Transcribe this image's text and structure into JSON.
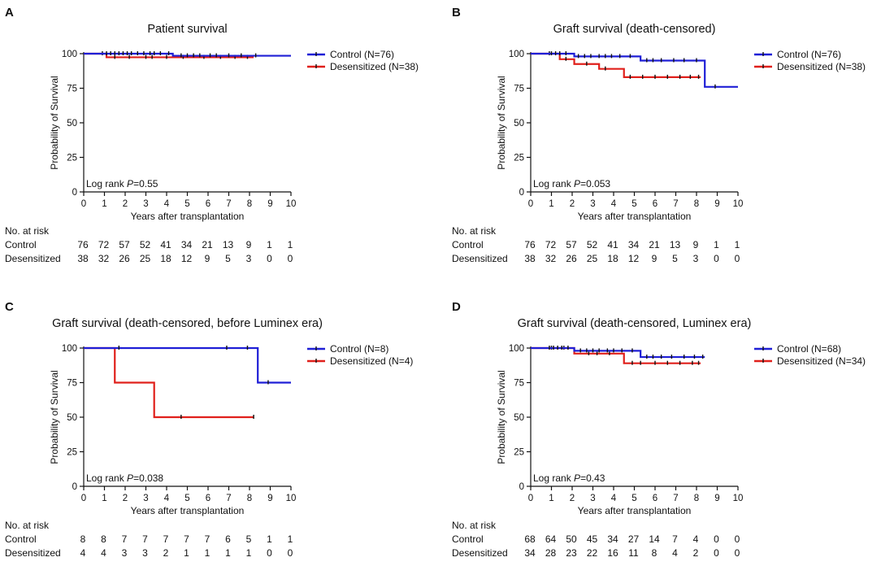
{
  "colors": {
    "control": "#1f1fd6",
    "desensitized": "#e0201b",
    "censor": "#111111"
  },
  "chart_data": [
    {
      "type": "line",
      "panel": "A",
      "title": "Patient survival",
      "xlabel": "Years after transplantation",
      "ylabel": "Probability of Survival",
      "xlim": [
        0,
        10
      ],
      "ylim": [
        0,
        100
      ],
      "xticks": [
        "0",
        "1",
        "2",
        "3",
        "4",
        "5",
        "6",
        "7",
        "8",
        "9",
        "10"
      ],
      "yticks": [
        "0",
        "25",
        "50",
        "75",
        "100"
      ],
      "logrank_prefix": "Log rank ",
      "logrank_p": "P",
      "logrank_value": "=0.55",
      "series": [
        {
          "name": "Control (N=76)",
          "key": "control",
          "steps": [
            [
              0,
              100
            ],
            [
              4.3,
              98.5
            ],
            [
              10,
              98.5
            ]
          ],
          "censors": [
            1.1,
            1.3,
            1.5,
            1.7,
            1.9,
            2.1,
            2.3,
            2.6,
            2.9,
            3.2,
            3.4,
            3.7,
            4.1,
            4.7,
            5.0,
            5.3,
            5.6,
            6.1,
            6.4,
            7.0,
            7.6,
            8.3
          ]
        },
        {
          "name": "Desensitized (N=38)",
          "key": "desensitized",
          "steps": [
            [
              0,
              100
            ],
            [
              1.1,
              97.4
            ],
            [
              8.2,
              97.4
            ]
          ],
          "censors": [
            0.9,
            1.5,
            2.2,
            3.0,
            3.3,
            4.0,
            4.8,
            5.8,
            6.6,
            7.3,
            7.9
          ]
        }
      ],
      "risk_header": "No. at risk",
      "risk_rows": [
        {
          "label": "Control",
          "values": [
            "76",
            "72",
            "57",
            "52",
            "41",
            "34",
            "21",
            "13",
            "9",
            "1",
            "1"
          ]
        },
        {
          "label": "Desensitized",
          "values": [
            "38",
            "32",
            "26",
            "25",
            "18",
            "12",
            "9",
            "5",
            "3",
            "0",
            "0"
          ]
        }
      ]
    },
    {
      "type": "line",
      "panel": "B",
      "title": "Graft survival (death-censored)",
      "xlabel": "Years after transplantation",
      "ylabel": "Probability of Survival",
      "xlim": [
        0,
        10
      ],
      "ylim": [
        0,
        100
      ],
      "xticks": [
        "0",
        "1",
        "2",
        "3",
        "4",
        "5",
        "6",
        "7",
        "8",
        "9",
        "10"
      ],
      "yticks": [
        "0",
        "25",
        "50",
        "75",
        "100"
      ],
      "logrank_prefix": "Log rank ",
      "logrank_p": "P",
      "logrank_value": "=0.053",
      "series": [
        {
          "name": "Control (N=76)",
          "key": "control",
          "steps": [
            [
              0,
              100
            ],
            [
              2.1,
              98
            ],
            [
              5.3,
              95
            ],
            [
              8.4,
              76
            ],
            [
              10,
              76
            ]
          ],
          "censors": [
            1.0,
            1.2,
            1.4,
            1.7,
            2.3,
            2.6,
            2.9,
            3.3,
            3.6,
            3.9,
            4.3,
            4.8,
            5.6,
            5.9,
            6.3,
            6.9,
            7.4,
            8.0,
            8.9
          ]
        },
        {
          "name": "Desensitized (N=38)",
          "key": "desensitized",
          "steps": [
            [
              0,
              100
            ],
            [
              1.4,
              96
            ],
            [
              2.1,
              92.5
            ],
            [
              3.3,
              89
            ],
            [
              4.5,
              83
            ],
            [
              8.2,
              83
            ]
          ],
          "censors": [
            0.9,
            1.7,
            2.7,
            3.6,
            4.8,
            5.4,
            6.0,
            6.6,
            7.2,
            7.7,
            8.1
          ]
        }
      ],
      "risk_header": "No. at risk",
      "risk_rows": [
        {
          "label": "Control",
          "values": [
            "76",
            "72",
            "57",
            "52",
            "41",
            "34",
            "21",
            "13",
            "9",
            "1",
            "1"
          ]
        },
        {
          "label": "Desensitized",
          "values": [
            "38",
            "32",
            "26",
            "25",
            "18",
            "12",
            "9",
            "5",
            "3",
            "0",
            "0"
          ]
        }
      ]
    },
    {
      "type": "line",
      "panel": "C",
      "title": "Graft survival (death-censored, before Luminex era)",
      "xlabel": "Years after transplantation",
      "ylabel": "Probability of Survival",
      "xlim": [
        0,
        10
      ],
      "ylim": [
        0,
        100
      ],
      "xticks": [
        "0",
        "1",
        "2",
        "3",
        "4",
        "5",
        "6",
        "7",
        "8",
        "9",
        "10"
      ],
      "yticks": [
        "0",
        "25",
        "50",
        "75",
        "100"
      ],
      "logrank_prefix": "Log rank ",
      "logrank_p": "P",
      "logrank_value": "=0.038",
      "series": [
        {
          "name": "Control (N=8)",
          "key": "control",
          "steps": [
            [
              0,
              100
            ],
            [
              8.4,
              75
            ],
            [
              10,
              75
            ]
          ],
          "censors": [
            1.7,
            6.9,
            7.9,
            8.9
          ]
        },
        {
          "name": "Desensitized (N=4)",
          "key": "desensitized",
          "steps": [
            [
              0,
              100
            ],
            [
              1.5,
              75
            ],
            [
              3.4,
              50
            ],
            [
              8.2,
              50
            ]
          ],
          "censors": [
            4.7,
            8.2
          ]
        }
      ],
      "risk_header": "No. at risk",
      "risk_rows": [
        {
          "label": "Control",
          "values": [
            "8",
            "8",
            "7",
            "7",
            "7",
            "7",
            "7",
            "6",
            "5",
            "1",
            "1"
          ]
        },
        {
          "label": "Desensitized",
          "values": [
            "4",
            "4",
            "3",
            "3",
            "2",
            "1",
            "1",
            "1",
            "1",
            "0",
            "0"
          ]
        }
      ]
    },
    {
      "type": "line",
      "panel": "D",
      "title": "Graft survival (death-censored, Luminex era)",
      "xlabel": "Years after transplantation",
      "ylabel": "Probability of Survival",
      "xlim": [
        0,
        10
      ],
      "ylim": [
        0,
        100
      ],
      "xticks": [
        "0",
        "1",
        "2",
        "3",
        "4",
        "5",
        "6",
        "7",
        "8",
        "9",
        "10"
      ],
      "yticks": [
        "0",
        "25",
        "50",
        "75",
        "100"
      ],
      "logrank_prefix": "Log rank ",
      "logrank_p": "P",
      "logrank_value": "=0.43",
      "series": [
        {
          "name": "Control (N=68)",
          "key": "control",
          "steps": [
            [
              0,
              100
            ],
            [
              2.1,
              98
            ],
            [
              5.3,
              93.5
            ],
            [
              8.4,
              93.5
            ]
          ],
          "censors": [
            0.9,
            1.1,
            1.3,
            1.5,
            1.8,
            2.4,
            2.7,
            3.0,
            3.3,
            3.7,
            4.0,
            4.4,
            4.9,
            5.6,
            5.9,
            6.3,
            6.8,
            7.4,
            7.9,
            8.3
          ]
        },
        {
          "name": "Desensitized (N=34)",
          "key": "desensitized",
          "steps": [
            [
              0,
              100
            ],
            [
              2.1,
              96
            ],
            [
              4.5,
              89
            ],
            [
              8.2,
              89
            ]
          ],
          "censors": [
            1.0,
            1.6,
            2.8,
            3.2,
            3.8,
            4.9,
            5.3,
            6.0,
            6.6,
            7.2,
            7.8,
            8.1
          ]
        }
      ],
      "risk_header": "No. at risk",
      "risk_rows": [
        {
          "label": "Control",
          "values": [
            "68",
            "64",
            "50",
            "45",
            "34",
            "27",
            "14",
            "7",
            "4",
            "0",
            "0"
          ]
        },
        {
          "label": "Desensitized",
          "values": [
            "34",
            "28",
            "23",
            "22",
            "16",
            "11",
            "8",
            "4",
            "2",
            "0",
            "0"
          ]
        }
      ]
    }
  ]
}
